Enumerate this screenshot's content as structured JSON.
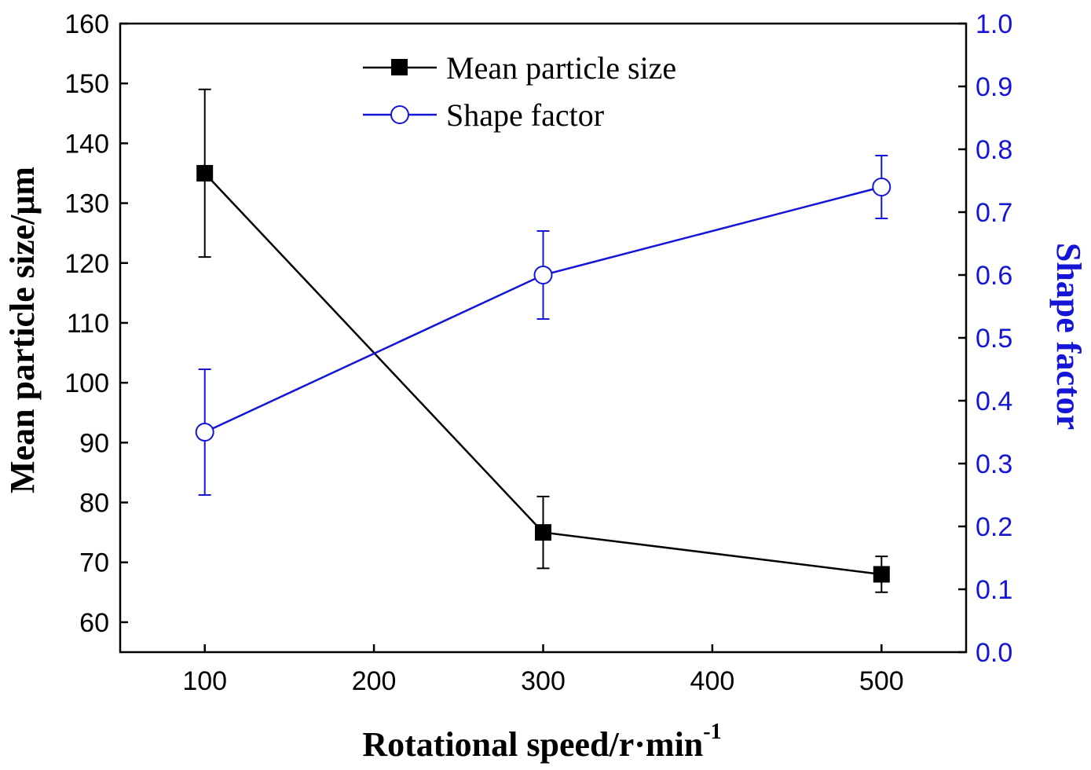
{
  "chart_data": {
    "type": "line",
    "x": [
      100,
      300,
      500
    ],
    "xlim": [
      50,
      550
    ],
    "xticks": [
      "100",
      "200",
      "300",
      "400",
      "500"
    ],
    "xlabel": {
      "main": "Rotational speed/r·min",
      "superscript": "-1"
    },
    "ylabel_left": "Mean particle size/μm",
    "ylabel_right": "Shape factor",
    "ylim_left": [
      55,
      160
    ],
    "yticks_left": [
      "60",
      "70",
      "80",
      "90",
      "100",
      "110",
      "120",
      "130",
      "140",
      "150",
      "160"
    ],
    "ylim_right": [
      0.0,
      1.0
    ],
    "yticks_right": [
      "0.0",
      "0.1",
      "0.2",
      "0.3",
      "0.4",
      "0.5",
      "0.6",
      "0.7",
      "0.8",
      "0.9",
      "1.0"
    ],
    "legend_position": "top-center",
    "series": [
      {
        "name": "Mean particle size",
        "axis": "left",
        "color": "#000000",
        "marker": "filled-square",
        "values": [
          135,
          75,
          68
        ],
        "errors": [
          14,
          6,
          3
        ]
      },
      {
        "name": "Shape factor",
        "axis": "right",
        "color": "#1515d6",
        "marker": "open-circle",
        "values": [
          0.35,
          0.6,
          0.74
        ],
        "errors": [
          0.1,
          0.07,
          0.05
        ]
      }
    ]
  }
}
